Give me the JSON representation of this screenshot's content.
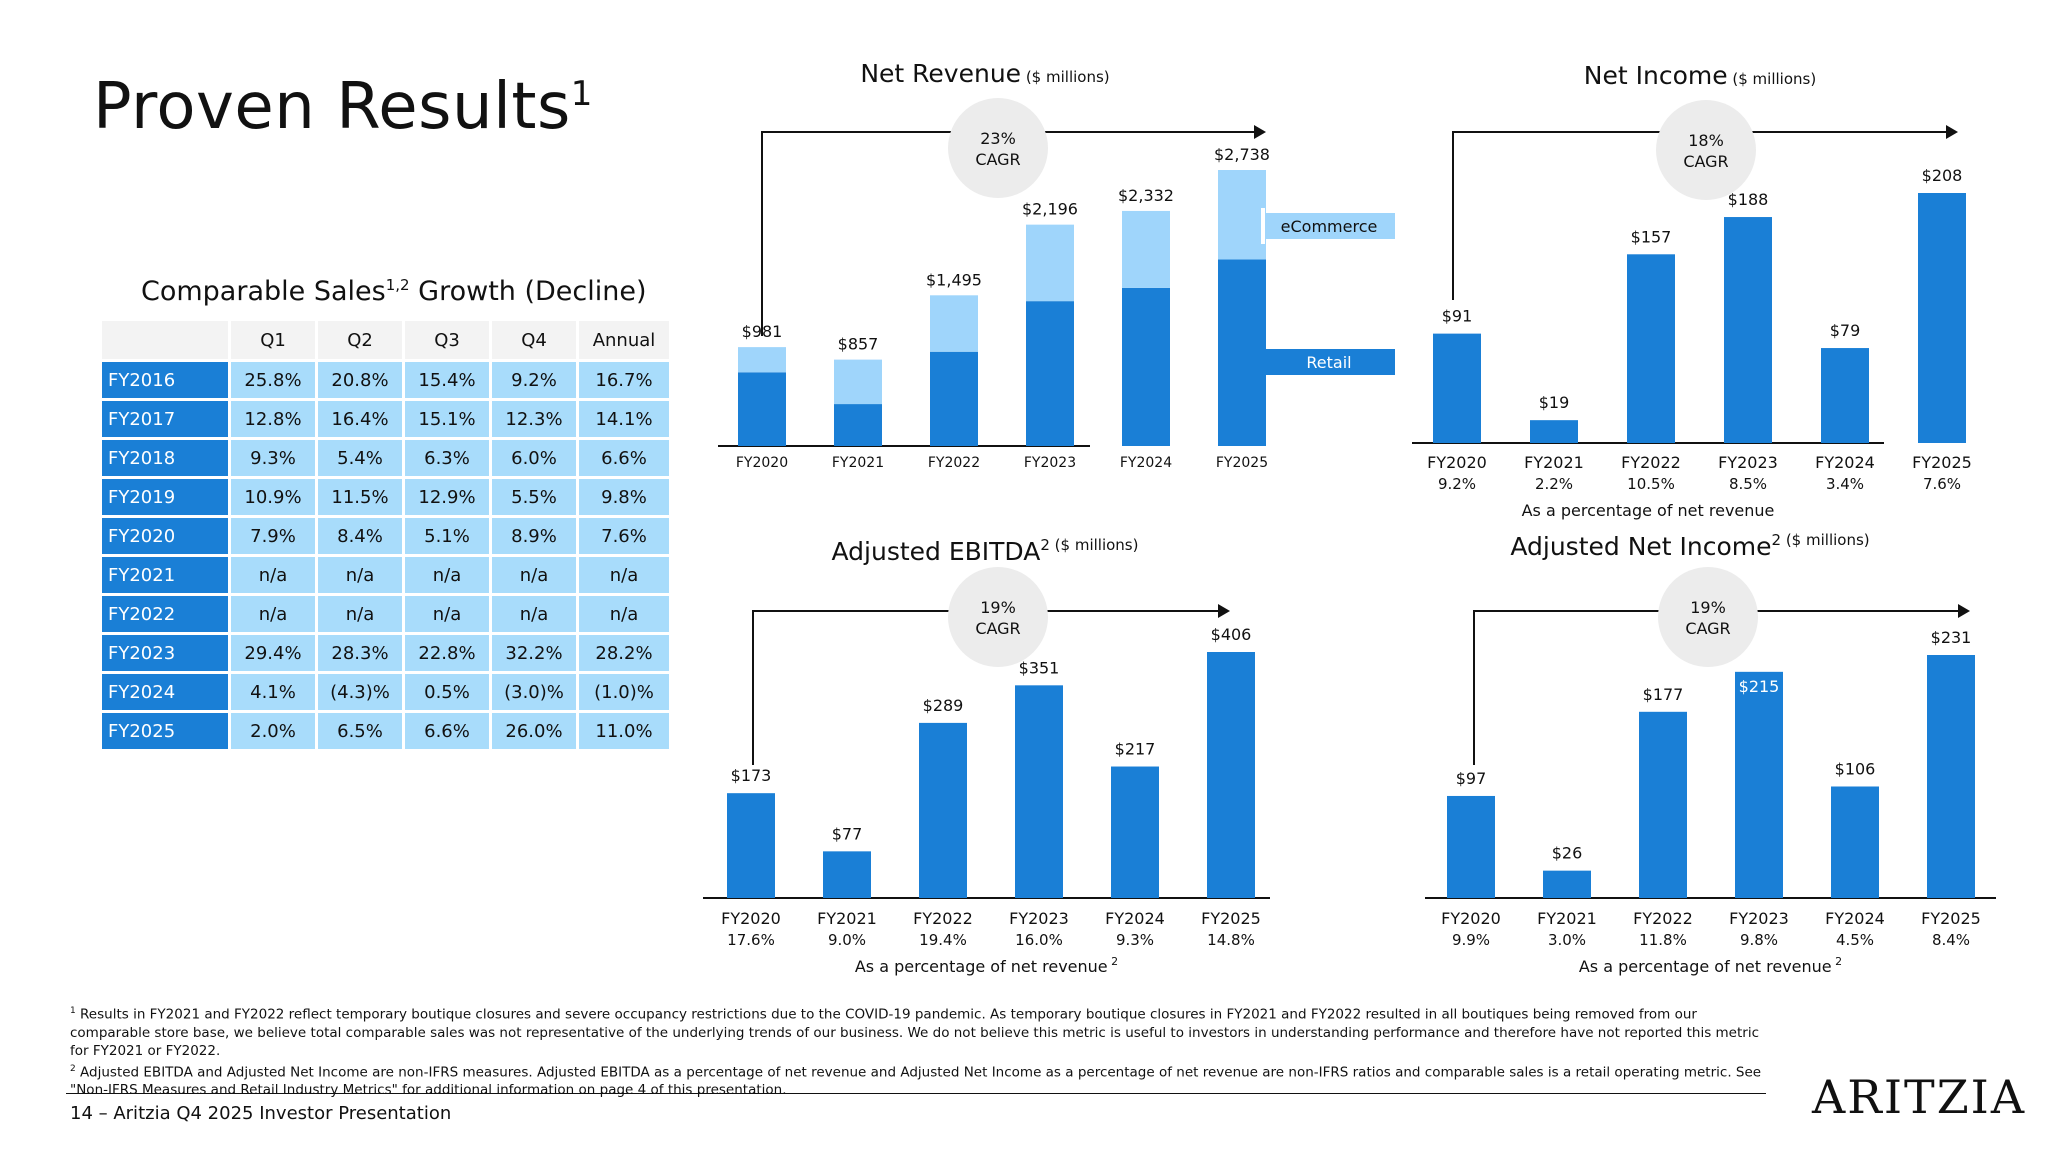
{
  "page": {
    "title": "Proven Results",
    "title_sup": "1",
    "footer_label": "14 – Aritzia Q4 2025 Investor Presentation",
    "logo": "ARITZIA"
  },
  "comparable_sales": {
    "title": "Comparable Sales",
    "title_sup": "1,2",
    "title_suffix": "Growth (Decline)",
    "headers": [
      "Q1",
      "Q2",
      "Q3",
      "Q4",
      "Annual"
    ],
    "rows": [
      {
        "year": "FY2016",
        "values": [
          "25.8%",
          "20.8%",
          "15.4%",
          "9.2%",
          "16.7%"
        ]
      },
      {
        "year": "FY2017",
        "values": [
          "12.8%",
          "16.4%",
          "15.1%",
          "12.3%",
          "14.1%"
        ]
      },
      {
        "year": "FY2018",
        "values": [
          "9.3%",
          "5.4%",
          "6.3%",
          "6.0%",
          "6.6%"
        ]
      },
      {
        "year": "FY2019",
        "values": [
          "10.9%",
          "11.5%",
          "12.9%",
          "5.5%",
          "9.8%"
        ]
      },
      {
        "year": "FY2020",
        "values": [
          "7.9%",
          "8.4%",
          "5.1%",
          "8.9%",
          "7.6%"
        ]
      },
      {
        "year": "FY2021",
        "values": [
          "n/a",
          "n/a",
          "n/a",
          "n/a",
          "n/a"
        ]
      },
      {
        "year": "FY2022",
        "values": [
          "n/a",
          "n/a",
          "n/a",
          "n/a",
          "n/a"
        ]
      },
      {
        "year": "FY2023",
        "values": [
          "29.4%",
          "28.3%",
          "22.8%",
          "32.2%",
          "28.2%"
        ]
      },
      {
        "year": "FY2024",
        "values": [
          "4.1%",
          "(4.3)%",
          "0.5%",
          "(3.0)%",
          "(1.0)%"
        ]
      },
      {
        "year": "FY2025",
        "values": [
          "2.0%",
          "6.5%",
          "6.6%",
          "26.0%",
          "11.0%"
        ]
      }
    ]
  },
  "colors": {
    "primary_blue": "#1a7fd6",
    "light_blue": "#9fd5fb",
    "table_blue": "#a8dcfb",
    "cagr_circle": "#ececec"
  },
  "chart_data": [
    {
      "id": "net_revenue",
      "type": "bar",
      "stacked": true,
      "title": "Net Revenue",
      "unit_note": "($ millions)",
      "categories": [
        "FY2020",
        "FY2021",
        "FY2022",
        "FY2023",
        "FY2024",
        "FY2025"
      ],
      "series": [
        {
          "name": "Retail",
          "values": [
            731,
            416,
            935,
            1437,
            1568,
            1850
          ]
        },
        {
          "name": "eCommerce",
          "values": [
            250,
            441,
            560,
            759,
            764,
            888
          ]
        }
      ],
      "total_labels": [
        "$981",
        "$857",
        "$1,495",
        "$2,196",
        "$2,332",
        "$2,738"
      ],
      "cagr": "23%",
      "cagr_label": "CAGR",
      "legend": "right"
    },
    {
      "id": "net_income",
      "type": "bar",
      "title": "Net Income",
      "unit_note": "($ millions)",
      "categories": [
        "FY2020",
        "FY2021",
        "FY2022",
        "FY2023",
        "FY2024",
        "FY2025"
      ],
      "values": [
        91,
        19,
        157,
        188,
        79,
        208
      ],
      "value_labels": [
        "$91",
        "$19",
        "$157",
        "$188",
        "$79",
        "$208"
      ],
      "sub_labels": [
        "9.2%",
        "2.2%",
        "10.5%",
        "8.5%",
        "3.4%",
        "7.6%"
      ],
      "sub_note": "As a percentage of net revenue",
      "cagr": "18%",
      "cagr_label": "CAGR"
    },
    {
      "id": "adjusted_ebitda",
      "type": "bar",
      "title": "Adjusted EBITDA",
      "title_sup": "2",
      "unit_note": "($ millions)",
      "categories": [
        "FY2020",
        "FY2021",
        "FY2022",
        "FY2023",
        "FY2024",
        "FY2025"
      ],
      "values": [
        173,
        77,
        289,
        351,
        217,
        406
      ],
      "value_labels": [
        "$173",
        "$77",
        "$289",
        "$351",
        "$217",
        "$406"
      ],
      "sub_labels": [
        "17.6%",
        "9.0%",
        "19.4%",
        "16.0%",
        "9.3%",
        "14.8%"
      ],
      "sub_note": "As a percentage of net revenue",
      "sub_note_sup": "2",
      "cagr": "19%",
      "cagr_label": "CAGR"
    },
    {
      "id": "adjusted_net_income",
      "type": "bar",
      "title": "Adjusted Net Income",
      "title_sup": "2",
      "unit_note": "($ millions)",
      "categories": [
        "FY2020",
        "FY2021",
        "FY2022",
        "FY2023",
        "FY2024",
        "FY2025"
      ],
      "values": [
        97,
        26,
        177,
        215,
        106,
        231
      ],
      "value_labels": [
        "$97",
        "$26",
        "$177",
        "$215",
        "$106",
        "$231"
      ],
      "sub_labels": [
        "9.9%",
        "3.0%",
        "11.8%",
        "9.8%",
        "4.5%",
        "8.4%"
      ],
      "sub_note": "As a percentage of net revenue",
      "sub_note_sup": "2",
      "cagr": "19%",
      "cagr_label": "CAGR"
    }
  ],
  "footnotes": {
    "note1_sup": "1",
    "note1": "Results in FY2021 and FY2022 reflect temporary boutique closures and severe occupancy restrictions due to the COVID-19 pandemic. As temporary boutique closures in FY2021 and FY2022 resulted in all boutiques being removed from our comparable store base, we believe total comparable sales was not representative of the underlying trends of our business. We do not believe this metric is useful to investors in understanding performance and therefore have not reported this metric for FY2021 or FY2022.",
    "note2_sup": "2",
    "note2": "Adjusted EBITDA and Adjusted Net Income are non-IFRS measures. Adjusted EBITDA as a percentage of net revenue and Adjusted Net Income as a percentage of net revenue are non-IFRS ratios and comparable sales is a retail operating metric. See \"Non-IFRS Measures and Retail Industry Metrics\" for additional information on page 4 of this presentation."
  }
}
